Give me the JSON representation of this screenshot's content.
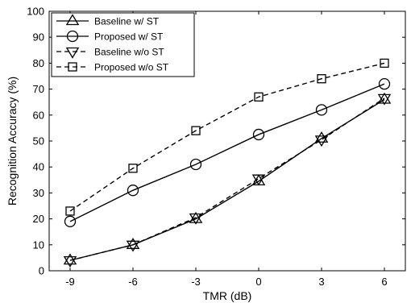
{
  "chart_data": {
    "type": "line",
    "title": "",
    "xlabel": "TMR (dB)",
    "ylabel": "Recognition Accuracy (%)",
    "x": [
      -9,
      -6,
      -3,
      0,
      3,
      6
    ],
    "xlim": [
      -10,
      7
    ],
    "ylim": [
      0,
      100
    ],
    "x_ticks": [
      "-9",
      "-6",
      "-3",
      "0",
      "3",
      "6"
    ],
    "y_ticks": [
      "0",
      "10",
      "20",
      "30",
      "40",
      "50",
      "60",
      "70",
      "80",
      "90",
      "100"
    ],
    "grid": false,
    "legend_position": "top-left",
    "series": [
      {
        "name": "Baseline w/ ST",
        "values": [
          4,
          10,
          20,
          34.5,
          51,
          66
        ],
        "marker": "triangle-up",
        "line": "solid",
        "color": "#000000"
      },
      {
        "name": "Proposed w/ ST",
        "values": [
          19,
          31,
          41,
          52.5,
          62,
          72
        ],
        "marker": "circle",
        "line": "solid",
        "color": "#000000"
      },
      {
        "name": "Baseline w/o ST",
        "values": [
          4,
          10,
          20.5,
          35.5,
          50.5,
          66.5
        ],
        "marker": "triangle-down",
        "line": "dashed",
        "color": "#000000"
      },
      {
        "name": "Proposed w/o ST",
        "values": [
          23,
          39.5,
          54,
          67,
          74,
          80
        ],
        "marker": "square",
        "line": "dashed",
        "color": "#000000"
      }
    ]
  }
}
